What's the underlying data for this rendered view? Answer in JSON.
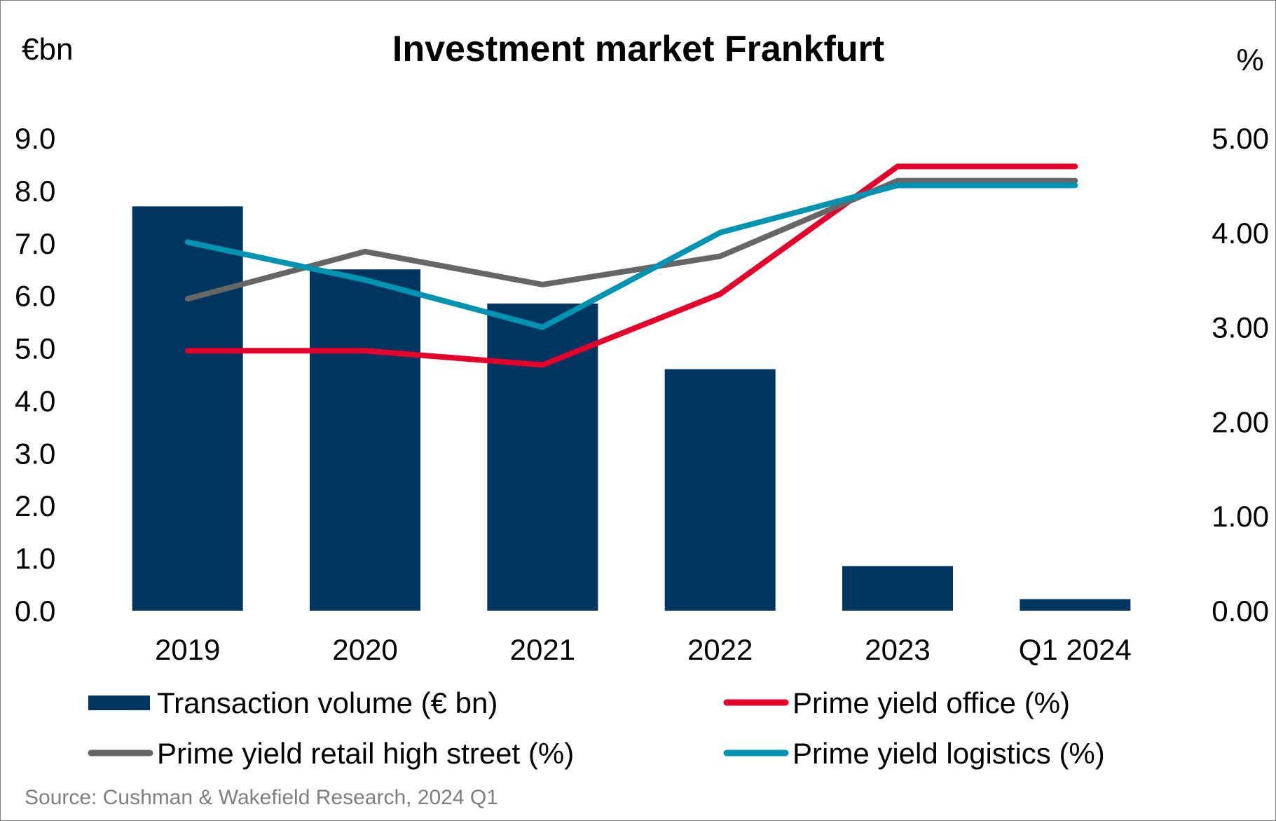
{
  "chart_data": {
    "type": "bar",
    "title": "Investment market Frankfurt",
    "y_left_unit": "€bn",
    "y_right_unit": "%",
    "categories": [
      "2019",
      "2020",
      "2021",
      "2022",
      "2023",
      "Q1 2024"
    ],
    "y_left": {
      "ylim": [
        0,
        9
      ],
      "ticks": [
        "0.0",
        "1.0",
        "2.0",
        "3.0",
        "4.0",
        "5.0",
        "6.0",
        "7.0",
        "8.0",
        "9.0"
      ]
    },
    "y_right": {
      "ylim": [
        0,
        5
      ],
      "ticks": [
        "0.00",
        "1.00",
        "2.00",
        "3.00",
        "4.00",
        "5.00"
      ]
    },
    "bar_series": {
      "name": "Transaction volume (€ bn)",
      "axis": "left",
      "color": "#003560",
      "values": [
        7.7,
        6.5,
        5.85,
        4.6,
        0.85,
        0.22
      ]
    },
    "line_series": [
      {
        "name": "Prime yield office (%)",
        "axis": "right",
        "color": "#e4002b",
        "values": [
          2.75,
          2.75,
          2.6,
          3.35,
          4.7,
          4.7
        ]
      },
      {
        "name": "Prime yield retail high street (%)",
        "axis": "right",
        "color": "#666666",
        "values": [
          3.3,
          3.8,
          3.45,
          3.75,
          4.55,
          4.55
        ]
      },
      {
        "name": "Prime yield logistics (%)",
        "axis": "right",
        "color": "#0093b2",
        "values": [
          3.9,
          3.5,
          3.0,
          4.0,
          4.5,
          4.5
        ]
      }
    ],
    "grid": false,
    "legend_position": "bottom"
  },
  "source": "Source: Cushman & Wakefield Research, 2024 Q1"
}
